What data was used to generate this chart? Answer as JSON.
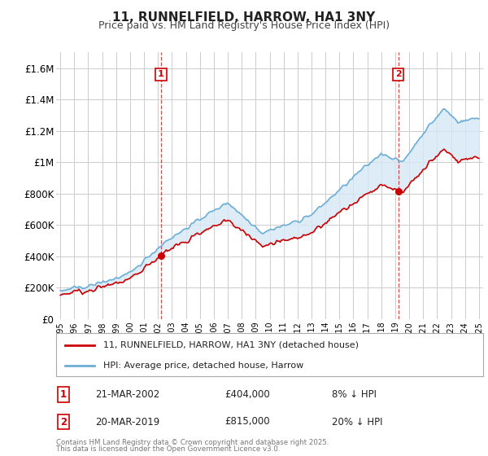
{
  "title": "11, RUNNELFIELD, HARROW, HA1 3NY",
  "subtitle": "Price paid vs. HM Land Registry's House Price Index (HPI)",
  "title_fontsize": 11,
  "subtitle_fontsize": 9,
  "background_color": "#ffffff",
  "plot_bg_color": "#ffffff",
  "grid_color": "#cccccc",
  "hpi_color": "#6baed6",
  "hpi_fill_color": "#d6e8f7",
  "sale_color": "#cc0000",
  "annotation1": {
    "label": "1",
    "date": "21-MAR-2002",
    "price": "£404,000",
    "note": "8% ↓ HPI"
  },
  "annotation2": {
    "label": "2",
    "date": "20-MAR-2019",
    "price": "£815,000",
    "note": "20% ↓ HPI"
  },
  "legend_line1": "11, RUNNELFIELD, HARROW, HA1 3NY (detached house)",
  "legend_line2": "HPI: Average price, detached house, Harrow",
  "footer1": "Contains HM Land Registry data © Crown copyright and database right 2025.",
  "footer2": "This data is licensed under the Open Government Licence v3.0.",
  "x_start_year": 1995,
  "x_end_year": 2025,
  "ylim": [
    0,
    1700000
  ],
  "ytick_vals": [
    0,
    200000,
    400000,
    600000,
    800000,
    1000000,
    1200000,
    1400000,
    1600000
  ],
  "ytick_labels": [
    "£0",
    "£200K",
    "£400K",
    "£600K",
    "£800K",
    "£1M",
    "£1.2M",
    "£1.4M",
    "£1.6M"
  ],
  "sale1_year": 2002.22,
  "sale1_price": 404000,
  "sale2_year": 2019.22,
  "sale2_price": 815000
}
